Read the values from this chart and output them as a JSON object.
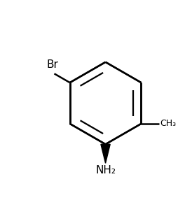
{
  "background_color": "#ffffff",
  "line_color": "#000000",
  "line_width": 1.8,
  "figsize": [
    2.74,
    2.86
  ],
  "dpi": 100,
  "br_label": "Br",
  "ch3_label": "CH₃",
  "nh2_label": "NH₂"
}
